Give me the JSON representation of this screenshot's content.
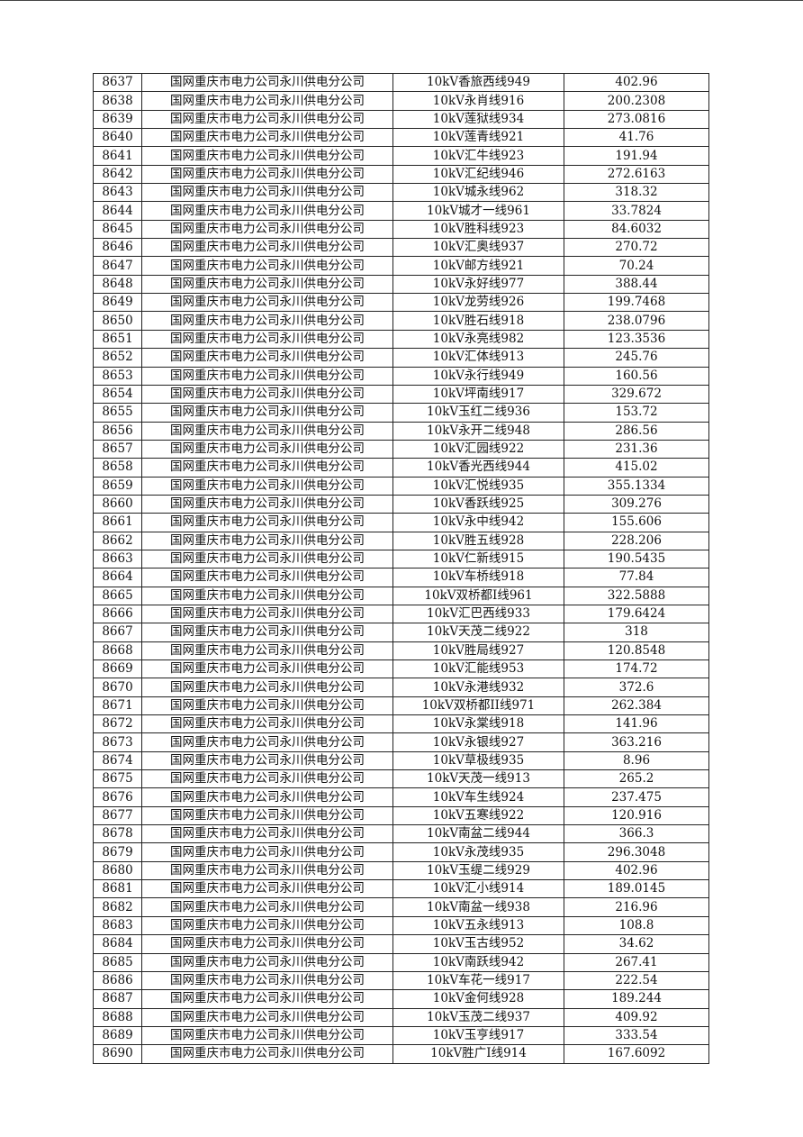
{
  "table": {
    "rows": [
      [
        "8637",
        "国网重庆市电力公司永川供电分公司",
        "10kV香旅西线949",
        "402.96"
      ],
      [
        "8638",
        "国网重庆市电力公司永川供电分公司",
        "10kV永肖线916",
        "200.2308"
      ],
      [
        "8639",
        "国网重庆市电力公司永川供电分公司",
        "10kV莲狱线934",
        "273.0816"
      ],
      [
        "8640",
        "国网重庆市电力公司永川供电分公司",
        "10kV莲青线921",
        "41.76"
      ],
      [
        "8641",
        "国网重庆市电力公司永川供电分公司",
        "10kV汇牛线923",
        "191.94"
      ],
      [
        "8642",
        "国网重庆市电力公司永川供电分公司",
        "10kV汇纪线946",
        "272.6163"
      ],
      [
        "8643",
        "国网重庆市电力公司永川供电分公司",
        "10kV城永线962",
        "318.32"
      ],
      [
        "8644",
        "国网重庆市电力公司永川供电分公司",
        "10kV城才一线961",
        "33.7824"
      ],
      [
        "8645",
        "国网重庆市电力公司永川供电分公司",
        "10kV胜科线923",
        "84.6032"
      ],
      [
        "8646",
        "国网重庆市电力公司永川供电分公司",
        "10kV汇奥线937",
        "270.72"
      ],
      [
        "8647",
        "国网重庆市电力公司永川供电分公司",
        "10kV邮方线921",
        "70.24"
      ],
      [
        "8648",
        "国网重庆市电力公司永川供电分公司",
        "10kV永好线977",
        "388.44"
      ],
      [
        "8649",
        "国网重庆市电力公司永川供电分公司",
        "10kV龙劳线926",
        "199.7468"
      ],
      [
        "8650",
        "国网重庆市电力公司永川供电分公司",
        "10kV胜石线918",
        "238.0796"
      ],
      [
        "8651",
        "国网重庆市电力公司永川供电分公司",
        "10kV永亮线982",
        "123.3536"
      ],
      [
        "8652",
        "国网重庆市电力公司永川供电分公司",
        "10kV汇体线913",
        "245.76"
      ],
      [
        "8653",
        "国网重庆市电力公司永川供电分公司",
        "10kV永行线949",
        "160.56"
      ],
      [
        "8654",
        "国网重庆市电力公司永川供电分公司",
        "10kV坪南线917",
        "329.672"
      ],
      [
        "8655",
        "国网重庆市电力公司永川供电分公司",
        "10kV玉红二线936",
        "153.72"
      ],
      [
        "8656",
        "国网重庆市电力公司永川供电分公司",
        "10kV永开二线948",
        "286.56"
      ],
      [
        "8657",
        "国网重庆市电力公司永川供电分公司",
        "10kV汇园线922",
        "231.36"
      ],
      [
        "8658",
        "国网重庆市电力公司永川供电分公司",
        "10kV香光西线944",
        "415.02"
      ],
      [
        "8659",
        "国网重庆市电力公司永川供电分公司",
        "10kV汇悦线935",
        "355.1334"
      ],
      [
        "8660",
        "国网重庆市电力公司永川供电分公司",
        "10kV香跃线925",
        "309.276"
      ],
      [
        "8661",
        "国网重庆市电力公司永川供电分公司",
        "10kV永中线942",
        "155.606"
      ],
      [
        "8662",
        "国网重庆市电力公司永川供电分公司",
        "10kV胜五线928",
        "228.206"
      ],
      [
        "8663",
        "国网重庆市电力公司永川供电分公司",
        "10kV仁新线915",
        "190.5435"
      ],
      [
        "8664",
        "国网重庆市电力公司永川供电分公司",
        "10kV车桥线918",
        "77.84"
      ],
      [
        "8665",
        "国网重庆市电力公司永川供电分公司",
        "10kV双桥都I线961",
        "322.5888"
      ],
      [
        "8666",
        "国网重庆市电力公司永川供电分公司",
        "10kV汇巴西线933",
        "179.6424"
      ],
      [
        "8667",
        "国网重庆市电力公司永川供电分公司",
        "10kV天茂二线922",
        "318"
      ],
      [
        "8668",
        "国网重庆市电力公司永川供电分公司",
        "10kV胜局线927",
        "120.8548"
      ],
      [
        "8669",
        "国网重庆市电力公司永川供电分公司",
        "10kV汇能线953",
        "174.72"
      ],
      [
        "8670",
        "国网重庆市电力公司永川供电分公司",
        "10kV永港线932",
        "372.6"
      ],
      [
        "8671",
        "国网重庆市电力公司永川供电分公司",
        "10kV双桥都II线971",
        "262.384"
      ],
      [
        "8672",
        "国网重庆市电力公司永川供电分公司",
        "10kV永棠线918",
        "141.96"
      ],
      [
        "8673",
        "国网重庆市电力公司永川供电分公司",
        "10kV永银线927",
        "363.216"
      ],
      [
        "8674",
        "国网重庆市电力公司永川供电分公司",
        "10kV草极线935",
        "8.96"
      ],
      [
        "8675",
        "国网重庆市电力公司永川供电分公司",
        "10kV天茂一线913",
        "265.2"
      ],
      [
        "8676",
        "国网重庆市电力公司永川供电分公司",
        "10kV车生线924",
        "237.475"
      ],
      [
        "8677",
        "国网重庆市电力公司永川供电分公司",
        "10kV五寒线922",
        "120.916"
      ],
      [
        "8678",
        "国网重庆市电力公司永川供电分公司",
        "10kV南盆二线944",
        "366.3"
      ],
      [
        "8679",
        "国网重庆市电力公司永川供电分公司",
        "10kV永茂线935",
        "296.3048"
      ],
      [
        "8680",
        "国网重庆市电力公司永川供电分公司",
        "10kV玉缇二线929",
        "402.96"
      ],
      [
        "8681",
        "国网重庆市电力公司永川供电分公司",
        "10kV汇小线914",
        "189.0145"
      ],
      [
        "8682",
        "国网重庆市电力公司永川供电分公司",
        "10kV南盆一线938",
        "216.96"
      ],
      [
        "8683",
        "国网重庆市电力公司永川供电分公司",
        "10kV五永线913",
        "108.8"
      ],
      [
        "8684",
        "国网重庆市电力公司永川供电分公司",
        "10kV玉古线952",
        "34.62"
      ],
      [
        "8685",
        "国网重庆市电力公司永川供电分公司",
        "10kV南跃线942",
        "267.41"
      ],
      [
        "8686",
        "国网重庆市电力公司永川供电分公司",
        "10kV车花一线917",
        "222.54"
      ],
      [
        "8687",
        "国网重庆市电力公司永川供电分公司",
        "10kV金何线928",
        "189.244"
      ],
      [
        "8688",
        "国网重庆市电力公司永川供电分公司",
        "10kV玉茂二线937",
        "409.92"
      ],
      [
        "8689",
        "国网重庆市电力公司永川供电分公司",
        "10kV玉亨线917",
        "333.54"
      ],
      [
        "8690",
        "国网重庆市电力公司永川供电分公司",
        "10kV胜广I线914",
        "167.6092"
      ]
    ]
  }
}
